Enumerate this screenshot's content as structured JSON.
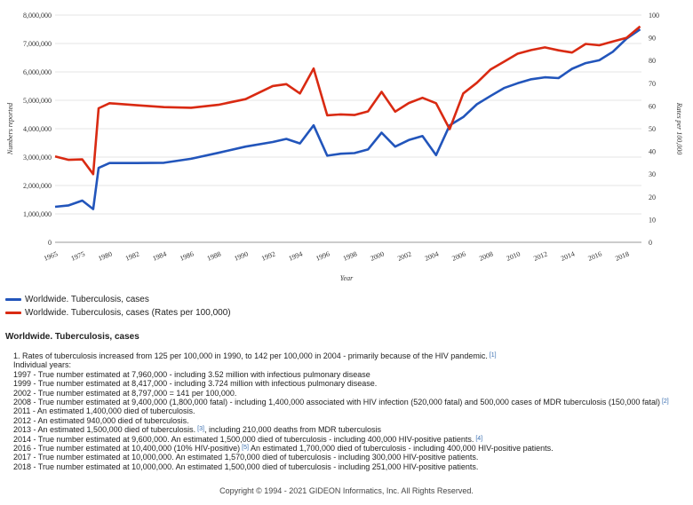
{
  "chart_data": {
    "type": "line",
    "title": "Worldwide. Tuberculosis, cases",
    "xlabel": "Year",
    "ylabel": "Numbers reported",
    "y2label": "Rates per 100,000",
    "ylim": [
      0,
      8000000
    ],
    "y2lim": [
      0,
      100
    ],
    "xlim": [
      1965,
      2019
    ],
    "x_ticks": [
      1965,
      1975,
      1980,
      1982,
      1984,
      1986,
      1988,
      1990,
      1992,
      1994,
      1996,
      1998,
      2000,
      2002,
      2004,
      2006,
      2008,
      2010,
      2012,
      2014,
      2016,
      2018
    ],
    "x_tick_labels": [
      "1965",
      "1975",
      "1980",
      "1982",
      "1984",
      "1986",
      "1988",
      "1990",
      "1992",
      "1994",
      "1996",
      "1998",
      "2000",
      "2002",
      "2004",
      "2006",
      "2008",
      "2010",
      "2012",
      "2014",
      "2016",
      "2018"
    ],
    "y_ticks": [
      0,
      1000000,
      2000000,
      3000000,
      4000000,
      5000000,
      6000000,
      7000000,
      8000000
    ],
    "y_tick_labels": [
      "0",
      "1,000,000",
      "2,000,000",
      "3,000,000",
      "4,000,000",
      "5,000,000",
      "6,000,000",
      "7,000,000",
      "8,000,000"
    ],
    "y2_ticks": [
      0,
      10,
      20,
      30,
      40,
      50,
      60,
      70,
      80,
      90,
      100
    ],
    "y2_tick_labels": [
      "0",
      "10",
      "20",
      "30",
      "40",
      "50",
      "60",
      "70",
      "80",
      "90",
      "100"
    ],
    "grid": "horizontal",
    "series": [
      {
        "name": "Worldwide. Tuberculosis, cases",
        "color": "#2255bb",
        "axis": "left",
        "x": [
          1965,
          1970,
          1975,
          1977,
          1978,
          1980,
          1982,
          1984,
          1986,
          1988,
          1990,
          1992,
          1993,
          1994,
          1995,
          1996,
          1997,
          1998,
          1999,
          2000,
          2001,
          2002,
          2003,
          2004,
          2005,
          2006,
          2007,
          2008,
          2009,
          2010,
          2011,
          2012,
          2013,
          2014,
          2015,
          2016,
          2017,
          2018,
          2019
        ],
        "values": [
          1250000,
          1300000,
          1470000,
          1170000,
          2620000,
          2790000,
          2790000,
          2800000,
          2940000,
          3150000,
          3370000,
          3530000,
          3640000,
          3480000,
          4120000,
          3050000,
          3120000,
          3140000,
          3270000,
          3860000,
          3370000,
          3600000,
          3740000,
          3070000,
          4120000,
          4410000,
          4860000,
          5150000,
          5430000,
          5600000,
          5740000,
          5810000,
          5780000,
          6110000,
          6310000,
          6410000,
          6710000,
          7170000,
          7500000
        ]
      },
      {
        "name": "Worldwide. Tuberculosis, cases (Rates per 100,000)",
        "color": "#d92a12",
        "axis": "right",
        "x": [
          1965,
          1970,
          1975,
          1977,
          1978,
          1980,
          1982,
          1984,
          1986,
          1988,
          1990,
          1992,
          1993,
          1994,
          1995,
          1996,
          1997,
          1998,
          1999,
          2000,
          2001,
          2002,
          2003,
          2004,
          2005,
          2006,
          2007,
          2008,
          2009,
          2010,
          2011,
          2012,
          2013,
          2014,
          2015,
          2016,
          2017,
          2018,
          2019
        ],
        "values": [
          37.8,
          36.3,
          36.5,
          30.0,
          59.0,
          61.2,
          60.3,
          59.5,
          59.2,
          60.5,
          63.0,
          68.8,
          69.6,
          65.5,
          76.5,
          55.9,
          56.3,
          56.0,
          57.6,
          66.2,
          57.5,
          61.3,
          63.6,
          61.2,
          49.8,
          65.5,
          70.2,
          76.0,
          79.5,
          83.0,
          84.6,
          85.8,
          84.5,
          83.5,
          87.3,
          86.7,
          88.4,
          90.0,
          95.0
        ]
      }
    ]
  },
  "x_plot_positions_note": "",
  "legend": {
    "item1": "Worldwide. Tuberculosis, cases",
    "item2": "Worldwide. Tuberculosis, cases (Rates per 100,000)",
    "color1": "#2255bb",
    "color2": "#d92a12"
  },
  "section_title": "Worldwide. Tuberculosis, cases",
  "notes": {
    "n1_text": "1. Rates of tuberculosis increased from 125 per 100,000 in 1990, to 142 per 100,000 in 2004 - primarily because of the HIV pandemic.",
    "n1_ref": "[1]",
    "n2": "Individual years:",
    "n3": "1997 - True number estimated at 7,960,000 - including 3.52 million with infectious pulmonary disease",
    "n4": "1999 - True number estimated at 8,417,000 - including 3.724 million with infectious pulmonary disease.",
    "n5": "2002 - True number estimated at 8,797,000 = 141 per 100,000.",
    "n6_text": "2008 - True number estimated at 9,400,000 (1,800,000 fatal) - including 1,400,000 associated with HIV infection (520,000 fatal) and 500,000 cases of MDR tuberculosis (150,000 fatal)",
    "n6_ref": "[2]",
    "n7": "2011 - An estimated 1,400,000 died of tuberculosis.",
    "n8": "2012 - An estimated 940,000 died of tuberculosis.",
    "n9_text": "2013 - An estimated 1,500,000 died of tuberculosis.",
    "n9_ref": "[3]",
    "n9_text2": ", including 210,000 deaths from MDR tuberculosis",
    "n10_text": "2014 - True number estimated at 9,600,000. An estimated 1,500,000 died of tuberculosis - including 400,000 HIV-positive patients.",
    "n10_ref": "[4]",
    "n11_text": "2016 - True number estimated at 10,400,000 (10% HIV-positive)",
    "n11_ref": "[5]",
    "n11_text2": "An estimated 1,700,000 died of tuberculosis - including 400,000 HIV-positive patients.",
    "n12": "2017 - True number estimated at 10,000,000. An estimated 1,570,000 died of tuberculosis - including 300,000 HIV-positive patients.",
    "n13": "2018 - True number estimated at 10,000,000. An estimated 1,500,000 died of tuberculosis - including 251,000 HIV-positive patients."
  },
  "footer": "Copyright © 1994 - 2021 GIDEON Informatics, Inc. All Rights Reserved."
}
